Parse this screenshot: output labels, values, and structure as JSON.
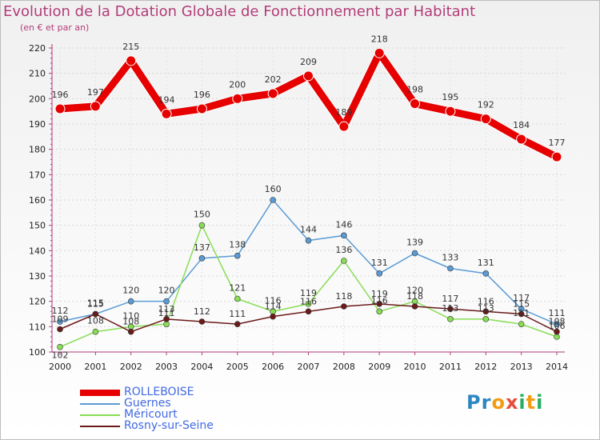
{
  "title": "Evolution de la Dotation Globale de Fonctionnement par Habitant",
  "subtitle": "(en € et par an)",
  "logo_text": "Proxiti",
  "colors": {
    "title": "#b23c78",
    "axis": "#b23c78",
    "rolleboise": "#e60000",
    "guernes": "#5b9bd5",
    "mericourt": "#88dd55",
    "rosny": "#6b1a1a"
  },
  "chart_data": {
    "type": "line",
    "categories": [
      "2000",
      "2001",
      "2002",
      "2003",
      "2004",
      "2005",
      "2006",
      "2007",
      "2008",
      "2009",
      "2010",
      "2011",
      "2012",
      "2013",
      "2014"
    ],
    "ylim": [
      100,
      220
    ],
    "yticks": [
      100,
      110,
      120,
      130,
      140,
      150,
      160,
      170,
      180,
      190,
      200,
      210,
      220
    ],
    "grid": true,
    "legend_position": "bottom-left",
    "series": [
      {
        "name": "ROLLEBOISE",
        "key": "rolleboise",
        "width": 9,
        "values": [
          196,
          197,
          215,
          194,
          196,
          200,
          202,
          209,
          189,
          218,
          198,
          195,
          192,
          184,
          177
        ]
      },
      {
        "name": "Guernes",
        "key": "guernes",
        "width": 1.5,
        "values": [
          112,
          115,
          120,
          120,
          137,
          138,
          160,
          144,
          146,
          131,
          139,
          133,
          131,
          117,
          111
        ]
      },
      {
        "name": "Méricourt",
        "key": "mericourt",
        "width": 1.5,
        "values": [
          102,
          108,
          110,
          111,
          150,
          121,
          116,
          119,
          136,
          116,
          120,
          113,
          113,
          111,
          106
        ]
      },
      {
        "name": "Rosny-sur-Seine",
        "key": "rosny",
        "width": 1.5,
        "values": [
          109,
          115,
          108,
          113,
          112,
          111,
          114,
          116,
          118,
          119,
          118,
          117,
          116,
          115,
          108
        ]
      }
    ],
    "data_labels": {
      "rolleboise": [
        "196",
        "197",
        "215",
        "194",
        "196",
        "200",
        "202",
        "209",
        "189",
        "218",
        "198",
        "195",
        "192",
        "184",
        "177"
      ],
      "guernes": [
        "112",
        "115",
        "120",
        "120",
        "137",
        "138",
        "160",
        "144",
        "146",
        "131",
        "139",
        "133",
        "131",
        "117",
        "111"
      ],
      "mericourt": [
        "102",
        "108",
        "110",
        "111",
        "150",
        "121",
        "116",
        "119",
        "136",
        "116",
        "120",
        "113",
        "113",
        "111",
        "106"
      ],
      "rosny": [
        "109",
        "115",
        "108",
        "113",
        "112",
        "111",
        "114",
        "116",
        "118",
        "119",
        "118",
        "117",
        "116",
        "115",
        "108"
      ]
    }
  }
}
